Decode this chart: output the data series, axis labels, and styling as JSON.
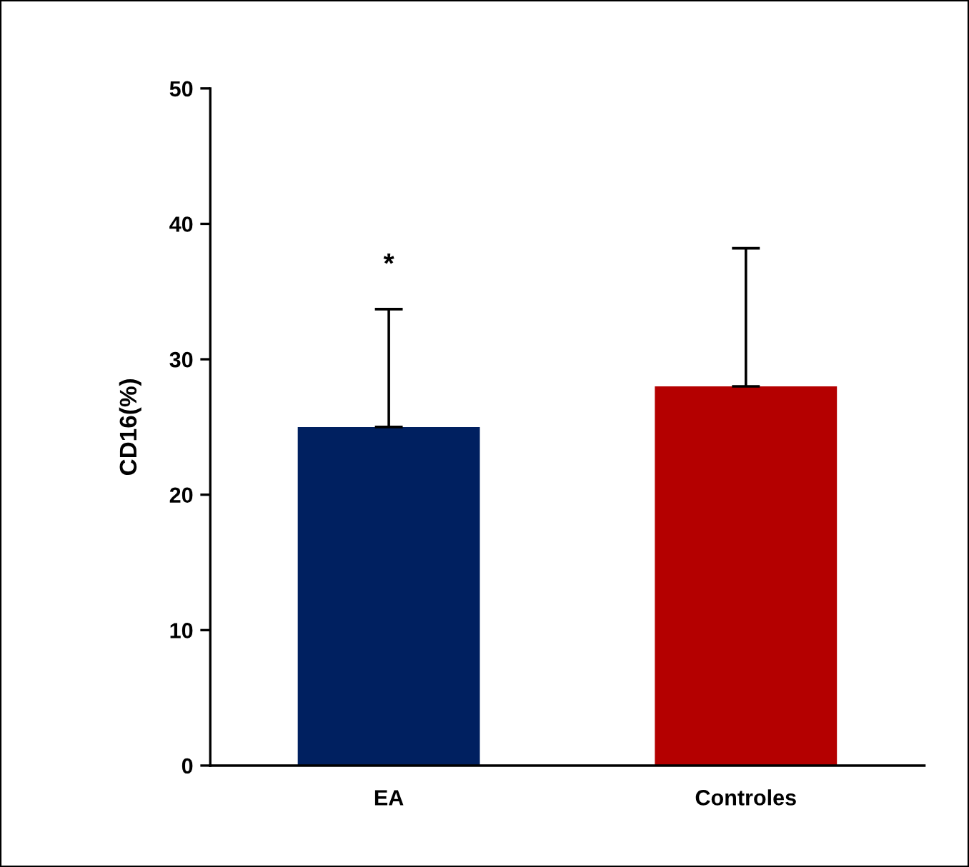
{
  "chart_data": {
    "type": "bar",
    "ylabel": "CD16(%)",
    "categories": [
      "EA",
      "Controles"
    ],
    "values": [
      25,
      28
    ],
    "colors": [
      "#002060",
      "#b40000"
    ],
    "errors": [
      [
        25,
        33.7
      ],
      [
        28,
        38.2
      ]
    ],
    "ylim": [
      0,
      50
    ],
    "yticks": [
      0,
      10,
      20,
      30,
      40,
      50
    ],
    "grid": false,
    "annotations": [
      "*"
    ]
  }
}
